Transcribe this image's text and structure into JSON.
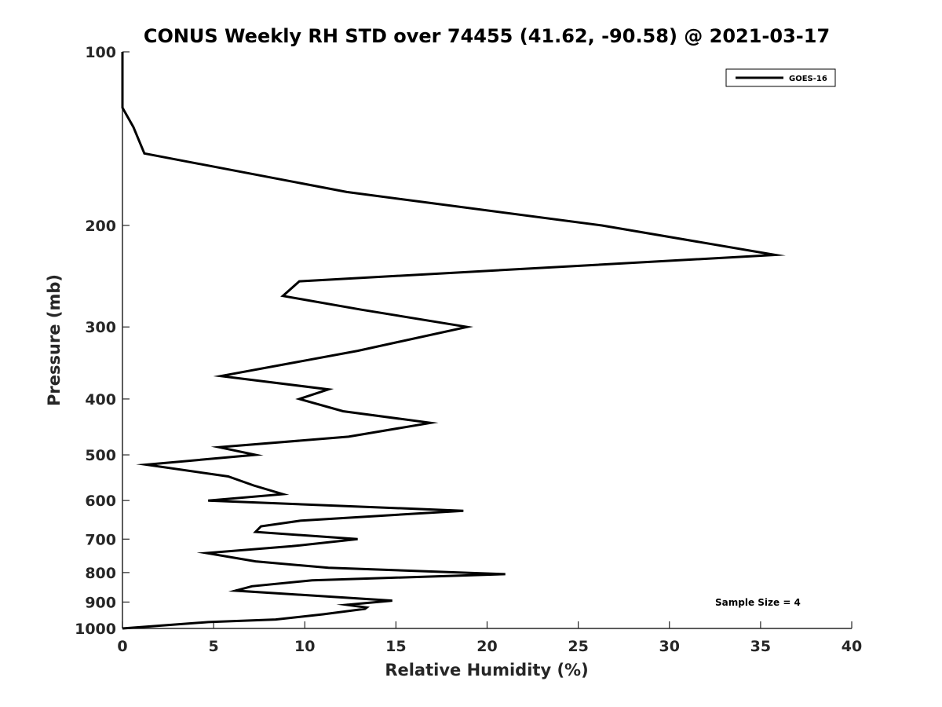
{
  "chart_data": {
    "type": "line",
    "title": "CONUS Weekly RH STD over 74455 (41.62, -90.58) @ 2021-03-17",
    "xlabel": "Relative Humidity (%)",
    "ylabel": "Pressure (mb)",
    "xlim": [
      0,
      40
    ],
    "ylim": [
      100,
      1000
    ],
    "y_scale": "log",
    "y_reversed": true,
    "x_ticks": [
      0,
      5,
      10,
      15,
      20,
      25,
      30,
      35,
      40
    ],
    "y_ticks": [
      100,
      200,
      300,
      400,
      500,
      600,
      700,
      800,
      900,
      1000
    ],
    "grid": false,
    "legend_position": "top-right",
    "series": [
      {
        "name": "GOES-16",
        "color": "#000000",
        "points": [
          [
            0.0,
            100
          ],
          [
            0.0,
            125
          ],
          [
            0.6,
            135
          ],
          [
            1.2,
            150
          ],
          [
            12.3,
            175
          ],
          [
            26.3,
            200
          ],
          [
            35.8,
            225
          ],
          [
            9.7,
            250
          ],
          [
            8.8,
            265
          ],
          [
            13.1,
            280
          ],
          [
            18.9,
            300
          ],
          [
            12.9,
            330
          ],
          [
            5.4,
            365
          ],
          [
            11.3,
            385
          ],
          [
            9.7,
            400
          ],
          [
            12.1,
            420
          ],
          [
            16.9,
            440
          ],
          [
            12.4,
            465
          ],
          [
            5.3,
            485
          ],
          [
            7.3,
            500
          ],
          [
            1.3,
            520
          ],
          [
            5.8,
            545
          ],
          [
            7.2,
            565
          ],
          [
            8.8,
            585
          ],
          [
            4.7,
            600
          ],
          [
            18.7,
            625
          ],
          [
            9.8,
            650
          ],
          [
            7.6,
            665
          ],
          [
            7.3,
            680
          ],
          [
            12.9,
            700
          ],
          [
            9.3,
            720
          ],
          [
            4.6,
            740
          ],
          [
            7.3,
            765
          ],
          [
            11.3,
            785
          ],
          [
            21.0,
            805
          ],
          [
            10.4,
            825
          ],
          [
            7.1,
            845
          ],
          [
            6.2,
            860
          ],
          [
            14.8,
            895
          ],
          [
            12.3,
            910
          ],
          [
            13.4,
            920
          ],
          [
            13.3,
            925
          ],
          [
            11.0,
            945
          ],
          [
            8.4,
            965
          ],
          [
            4.7,
            975
          ],
          [
            0.0,
            1000
          ]
        ]
      }
    ],
    "annotations": [
      "Sample Size = 4"
    ]
  }
}
